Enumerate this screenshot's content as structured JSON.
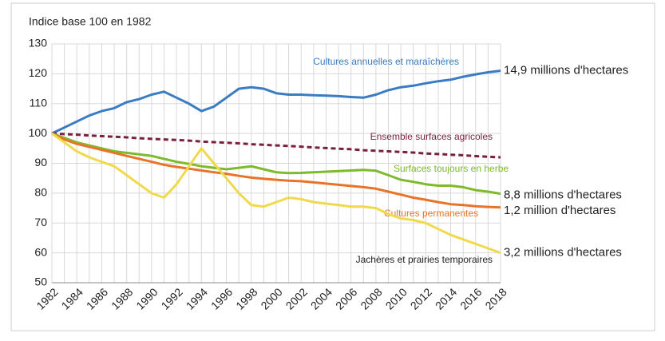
{
  "chart_data": {
    "type": "line",
    "y_label": "Indice base 100 en 1982",
    "x": [
      1982,
      1983,
      1984,
      1985,
      1986,
      1987,
      1988,
      1989,
      1990,
      1991,
      1992,
      1993,
      1994,
      1995,
      1996,
      1997,
      1998,
      1999,
      2000,
      2001,
      2002,
      2003,
      2004,
      2005,
      2006,
      2007,
      2008,
      2009,
      2010,
      2011,
      2012,
      2013,
      2014,
      2015,
      2016,
      2017,
      2018
    ],
    "xlim": [
      1982,
      2018
    ],
    "xticks": [
      1982,
      1984,
      1986,
      1988,
      1990,
      1992,
      1994,
      1996,
      1998,
      2000,
      2002,
      2004,
      2006,
      2008,
      2010,
      2012,
      2014,
      2016,
      2018
    ],
    "ylim": [
      50,
      130
    ],
    "yticks": [
      50,
      60,
      70,
      80,
      90,
      100,
      110,
      120,
      130
    ],
    "grid": true,
    "series": [
      {
        "name": "Cultures annuelles et maraîchères",
        "color": "#3a7cc4",
        "end_label": "14,9 millions d'hectares",
        "values": [
          100,
          102,
          104,
          106,
          107.5,
          108.5,
          110.5,
          111.5,
          113,
          114,
          112,
          110,
          107.5,
          109,
          112,
          115,
          115.5,
          115,
          113.5,
          113,
          113,
          112.8,
          112.7,
          112.5,
          112.2,
          112,
          113,
          114.5,
          115.5,
          116,
          116.8,
          117.5,
          118,
          119,
          119.8,
          120.5,
          121
        ]
      },
      {
        "name": "Ensemble surfaces agricoles",
        "color": "#7b1f3f",
        "dashed": true,
        "values": [
          100,
          99.8,
          99.6,
          99.3,
          99.1,
          98.9,
          98.7,
          98.4,
          98.2,
          98,
          97.8,
          97.6,
          97.3,
          97.1,
          96.9,
          96.7,
          96.4,
          96.2,
          96,
          95.8,
          95.6,
          95.3,
          95.1,
          94.9,
          94.7,
          94.4,
          94.2,
          94,
          93.8,
          93.6,
          93.3,
          93.1,
          92.9,
          92.7,
          92.4,
          92.2,
          92
        ]
      },
      {
        "name": "Surfaces toujours en herbe",
        "color": "#7fba2a",
        "end_label": "8,8 millions d'hectares",
        "values": [
          100,
          98.5,
          97,
          96,
          95,
          94,
          93.5,
          93,
          92.5,
          91.5,
          90.5,
          89.8,
          89,
          88.5,
          88,
          88.5,
          89,
          88,
          87,
          86.7,
          86.8,
          87,
          87.2,
          87.4,
          87.6,
          87.8,
          87.5,
          86,
          84.5,
          83.8,
          83,
          82.5,
          82.5,
          82,
          81,
          80.5,
          79.8
        ]
      },
      {
        "name": "Cultures permanentes",
        "color": "#e8742a",
        "end_label": "1,2 million d'hectares",
        "values": [
          100,
          98,
          96.5,
          95.5,
          94.5,
          93.5,
          92.5,
          91.5,
          90.5,
          89.5,
          88.8,
          88.2,
          87.6,
          87,
          86.5,
          85.8,
          85.2,
          84.8,
          84.5,
          84.2,
          84,
          83.6,
          83.2,
          82.8,
          82.4,
          82,
          81.5,
          80.5,
          79.5,
          78.5,
          77.8,
          77,
          76.3,
          76,
          75.6,
          75.4,
          75.2
        ]
      },
      {
        "name": "Jachères et prairies temporaires",
        "color": "#f0d94a",
        "end_label": "3,2 millions d'hectares",
        "values": [
          100,
          97,
          94,
          92,
          90.5,
          89,
          86,
          83,
          80,
          78.5,
          83,
          89,
          95,
          90,
          85,
          80,
          76,
          75.5,
          77,
          78.5,
          78,
          77,
          76.5,
          76,
          75.5,
          75.5,
          75,
          73,
          71.5,
          71,
          70,
          68,
          66,
          64.5,
          63,
          61.5,
          60
        ]
      }
    ]
  }
}
